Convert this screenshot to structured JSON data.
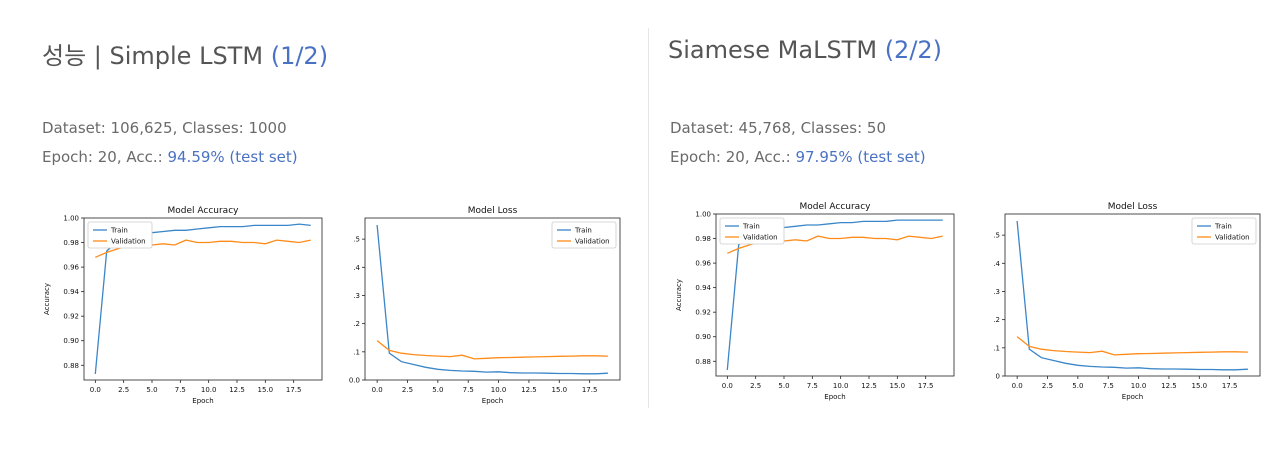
{
  "left": {
    "title_main": "성능 | Simple LSTM",
    "title_page": "(1/2)",
    "dataset_line": "Dataset: 106,625,   Classes: 1000",
    "epoch_prefix": "Epoch: 20,   Acc.: ",
    "acc_text": "94.59% (test set)"
  },
  "right": {
    "title_main": "Siamese MaLSTM",
    "title_page": "(2/2)",
    "dataset_line": "Dataset: 45,768,   Classes: 50",
    "epoch_prefix": "Epoch: 20,   Acc.: ",
    "acc_text": "97.95% (test set)"
  },
  "colors": {
    "train": "#3a86c8",
    "validation": "#ff8c1a",
    "accent": "#4a72c4"
  },
  "chart_data": [
    {
      "id": "left-accuracy",
      "type": "line",
      "title": "Model Accuracy",
      "xlabel": "Epoch",
      "ylabel": "Accuracy",
      "xlim": [
        -1,
        20
      ],
      "ylim": [
        0.868,
        1.0
      ],
      "xticks": [
        0,
        2.5,
        5,
        7.5,
        10,
        12.5,
        15,
        17.5
      ],
      "xtick_labels": [
        "0.0",
        "2.5",
        "5.0",
        "7.5",
        "10.0",
        "12.5",
        "15.0",
        "17.5"
      ],
      "yticks": [
        0.88,
        0.9,
        0.92,
        0.94,
        0.96,
        0.98,
        1.0
      ],
      "ytick_labels": [
        "0.88",
        "0.90",
        "0.92",
        "0.94",
        "0.96",
        "0.98",
        "1.00"
      ],
      "legend_position": "top-left",
      "x": [
        0,
        1,
        2,
        3,
        4,
        5,
        6,
        7,
        8,
        9,
        10,
        11,
        12,
        13,
        14,
        15,
        16,
        17,
        18,
        19
      ],
      "series": [
        {
          "name": "Train",
          "color": "#3a86c8",
          "values": [
            0.873,
            0.973,
            0.982,
            0.985,
            0.987,
            0.988,
            0.989,
            0.99,
            0.99,
            0.991,
            0.992,
            0.993,
            0.993,
            0.993,
            0.994,
            0.994,
            0.994,
            0.994,
            0.995,
            0.994
          ]
        },
        {
          "name": "Validation",
          "color": "#ff8c1a",
          "values": [
            0.968,
            0.972,
            0.975,
            0.978,
            0.978,
            0.978,
            0.979,
            0.978,
            0.982,
            0.98,
            0.98,
            0.981,
            0.981,
            0.98,
            0.98,
            0.979,
            0.982,
            0.981,
            0.98,
            0.982
          ]
        }
      ]
    },
    {
      "id": "left-loss",
      "type": "line",
      "title": "Model Loss",
      "xlabel": "Epoch",
      "ylabel": "",
      "xlim": [
        -1,
        20
      ],
      "ylim": [
        0,
        0.575
      ],
      "xticks": [
        0,
        2.5,
        5,
        7.5,
        10,
        12.5,
        15,
        17.5
      ],
      "xtick_labels": [
        "0.0",
        "2.5",
        "5.0",
        "7.5",
        "10.0",
        "12.5",
        "15.0",
        "17.5"
      ],
      "yticks": [
        0,
        0.1,
        0.2,
        0.3,
        0.4,
        0.5
      ],
      "ytick_labels": [
        "0.0",
        ".1",
        ".2",
        ".3",
        ".4",
        ".5"
      ],
      "legend_position": "top-right",
      "x": [
        0,
        1,
        2,
        3,
        4,
        5,
        6,
        7,
        8,
        9,
        10,
        11,
        12,
        13,
        14,
        15,
        16,
        17,
        18,
        19
      ],
      "series": [
        {
          "name": "Train",
          "color": "#3a86c8",
          "values": [
            0.55,
            0.095,
            0.065,
            0.055,
            0.045,
            0.038,
            0.034,
            0.032,
            0.031,
            0.028,
            0.029,
            0.026,
            0.025,
            0.025,
            0.024,
            0.023,
            0.023,
            0.022,
            0.022,
            0.024
          ]
        },
        {
          "name": "Validation",
          "color": "#ff8c1a",
          "values": [
            0.14,
            0.105,
            0.095,
            0.09,
            0.087,
            0.085,
            0.083,
            0.088,
            0.075,
            0.077,
            0.079,
            0.08,
            0.081,
            0.082,
            0.083,
            0.084,
            0.085,
            0.086,
            0.086,
            0.085
          ]
        }
      ]
    },
    {
      "id": "right-accuracy",
      "type": "line",
      "title": "Model Accuracy",
      "xlabel": "Epoch",
      "ylabel": "Accuracy",
      "xlim": [
        -1,
        20
      ],
      "ylim": [
        0.868,
        1.0
      ],
      "xticks": [
        0,
        2.5,
        5,
        7.5,
        10,
        12.5,
        15,
        17.5
      ],
      "xtick_labels": [
        "0.0",
        "2.5",
        "5.0",
        "7.5",
        "10.0",
        "12.5",
        "15.0",
        "17.5"
      ],
      "yticks": [
        0.88,
        0.9,
        0.92,
        0.94,
        0.96,
        0.98,
        1.0
      ],
      "ytick_labels": [
        "0.88",
        "0.90",
        "0.92",
        "0.94",
        "0.96",
        "0.98",
        "1.00"
      ],
      "legend_position": "top-left",
      "x": [
        0,
        1,
        2,
        3,
        4,
        5,
        6,
        7,
        8,
        9,
        10,
        11,
        12,
        13,
        14,
        15,
        16,
        17,
        18,
        19
      ],
      "series": [
        {
          "name": "Train",
          "color": "#3a86c8",
          "values": [
            0.873,
            0.975,
            0.983,
            0.986,
            0.988,
            0.989,
            0.99,
            0.991,
            0.991,
            0.992,
            0.993,
            0.993,
            0.994,
            0.994,
            0.994,
            0.995,
            0.995,
            0.995,
            0.995,
            0.995
          ]
        },
        {
          "name": "Validation",
          "color": "#ff8c1a",
          "values": [
            0.968,
            0.972,
            0.975,
            0.978,
            0.978,
            0.978,
            0.979,
            0.978,
            0.982,
            0.98,
            0.98,
            0.981,
            0.981,
            0.98,
            0.98,
            0.979,
            0.982,
            0.981,
            0.98,
            0.982
          ]
        }
      ]
    },
    {
      "id": "right-loss",
      "type": "line",
      "title": "Model Loss",
      "xlabel": "Epoch",
      "ylabel": "",
      "xlim": [
        -1,
        20
      ],
      "ylim": [
        0,
        0.575
      ],
      "xticks": [
        0,
        2.5,
        5,
        7.5,
        10,
        12.5,
        15,
        17.5
      ],
      "xtick_labels": [
        "0.0",
        "2.5",
        "5.0",
        "7.5",
        "10.0",
        "12.5",
        "15.0",
        "17.5"
      ],
      "yticks": [
        0,
        0.1,
        0.2,
        0.3,
        0.4,
        0.5
      ],
      "ytick_labels": [
        "0",
        ".1",
        ".2",
        ".3",
        ".4",
        ".5"
      ],
      "legend_position": "top-right",
      "x": [
        0,
        1,
        2,
        3,
        4,
        5,
        6,
        7,
        8,
        9,
        10,
        11,
        12,
        13,
        14,
        15,
        16,
        17,
        18,
        19
      ],
      "series": [
        {
          "name": "Train",
          "color": "#3a86c8",
          "values": [
            0.55,
            0.095,
            0.065,
            0.055,
            0.045,
            0.038,
            0.034,
            0.032,
            0.031,
            0.028,
            0.029,
            0.026,
            0.025,
            0.025,
            0.024,
            0.023,
            0.023,
            0.022,
            0.022,
            0.024
          ]
        },
        {
          "name": "Validation",
          "color": "#ff8c1a",
          "values": [
            0.14,
            0.105,
            0.095,
            0.09,
            0.087,
            0.085,
            0.083,
            0.088,
            0.075,
            0.077,
            0.079,
            0.08,
            0.081,
            0.082,
            0.083,
            0.084,
            0.085,
            0.086,
            0.086,
            0.085
          ]
        }
      ]
    }
  ]
}
